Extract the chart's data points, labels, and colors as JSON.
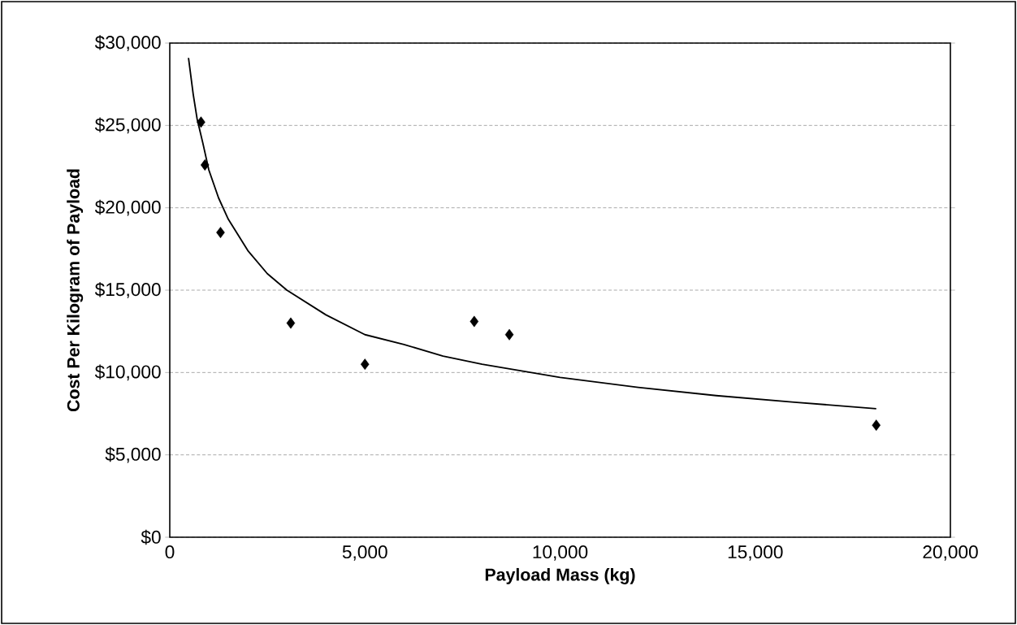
{
  "chart_data": {
    "type": "scatter",
    "xlabel": "Payload Mass (kg)",
    "ylabel": "Cost Per Kilogram of Payload",
    "series": [
      {
        "color": "#000000",
        "marker": "diamond",
        "x": [
          800,
          900,
          1300,
          3100,
          5000,
          7800,
          8700,
          18100
        ],
        "values": [
          25200,
          22600,
          18500,
          13000,
          10500,
          13100,
          12300,
          6800
        ]
      },
      {
        "type": "line",
        "color": "#000000",
        "marker": "none",
        "line_style": "solid",
        "x": [
          480,
          600,
          700,
          850,
          1000,
          1250,
          1500,
          2000,
          2500,
          3000,
          4000,
          5000,
          6000,
          7000,
          8000,
          10000,
          12000,
          14000,
          16000,
          18100
        ],
        "values": [
          29100,
          26900,
          25400,
          23900,
          22300,
          20600,
          19300,
          17400,
          16000,
          15000,
          13500,
          12300,
          11700,
          11000,
          10500,
          9700,
          9100,
          8600,
          8200,
          7800
        ]
      }
    ],
    "xlim": [
      0,
      20000
    ],
    "ylim": [
      0,
      30000
    ],
    "xticks": [
      0,
      {
        "value": 5000,
        "label": "5,000"
      },
      {
        "value": 10000,
        "label": "10,000"
      },
      {
        "value": 15000,
        "label": "15,000"
      },
      {
        "value": 20000,
        "label": "20,000"
      }
    ],
    "yticks": [
      {
        "value": 0,
        "label": "$0"
      },
      {
        "value": 5000,
        "label": "$5,000"
      },
      {
        "value": 10000,
        "label": "$10,000"
      },
      {
        "value": 15000,
        "label": "$15,000"
      },
      {
        "value": 20000,
        "label": "$20,000"
      },
      {
        "value": 25000,
        "label": "$25,000"
      },
      {
        "value": 30000,
        "label": "$30,000"
      }
    ],
    "grid": "y"
  }
}
